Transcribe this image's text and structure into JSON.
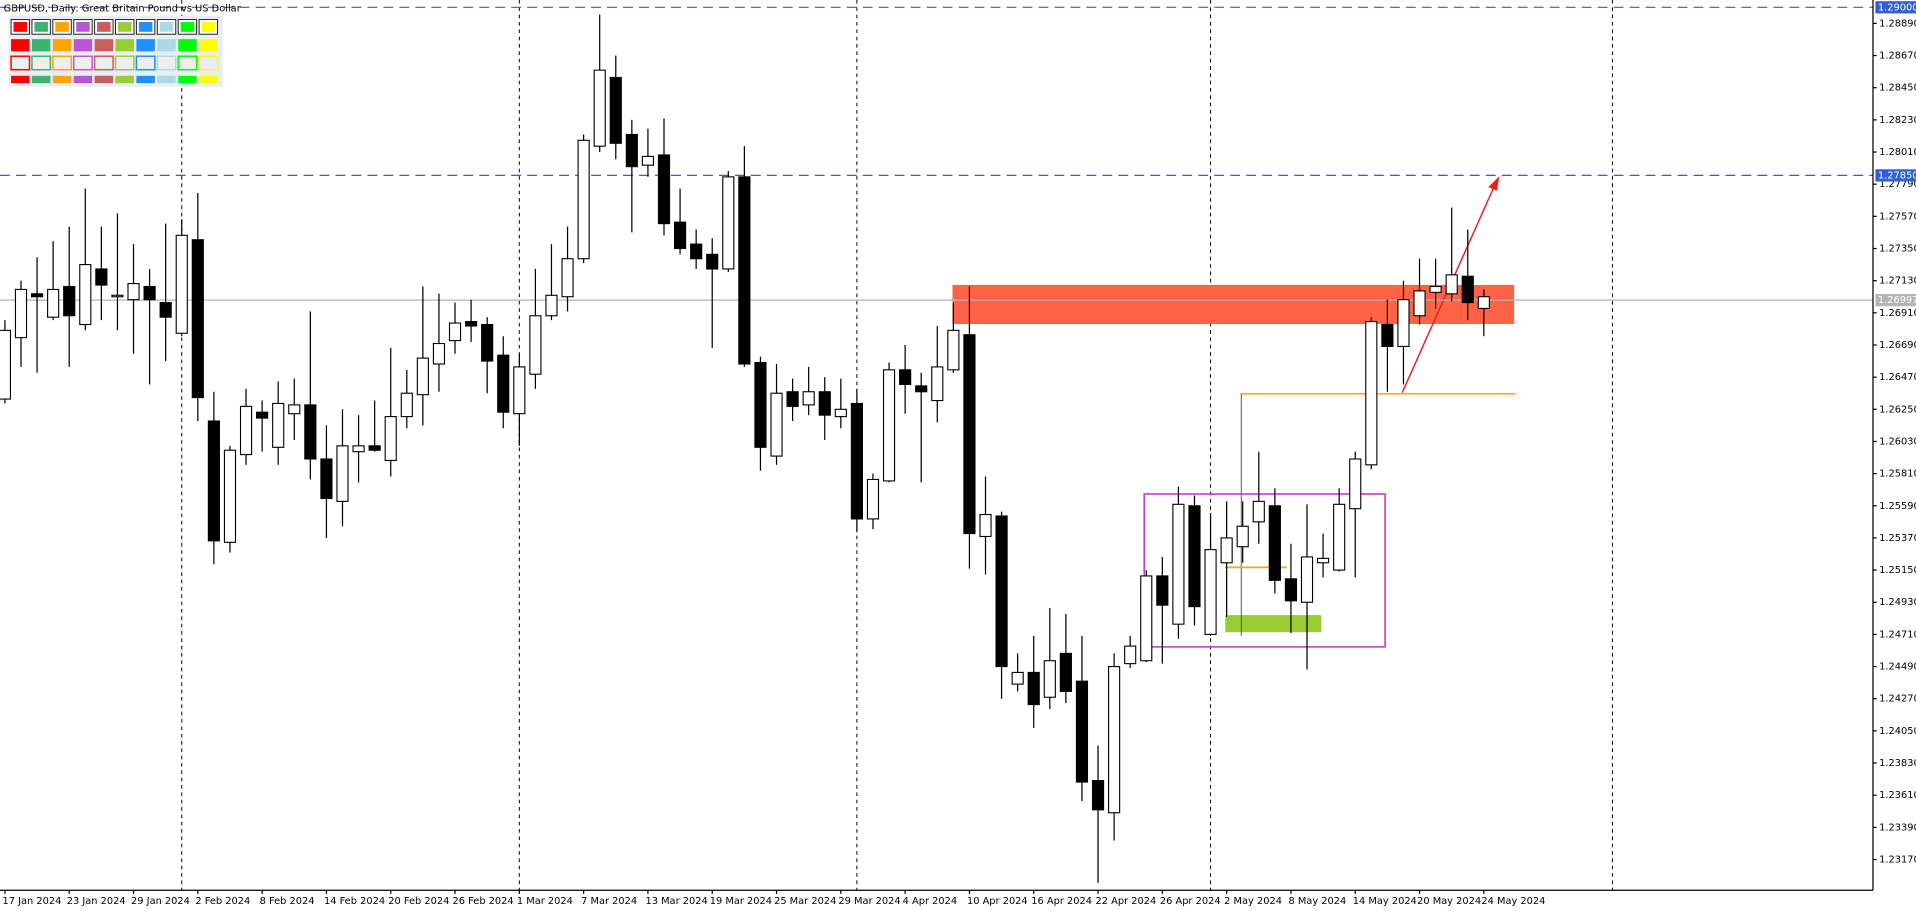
{
  "chart_data": {
    "type": "candlestick",
    "title": "GBPUSD, Daily:  Great Britain Pound vs US Dollar",
    "categories": [
      "17 Jan 2024",
      null,
      null,
      null,
      "23 Jan 2024",
      null,
      null,
      null,
      "29 Jan 2024",
      null,
      null,
      null,
      "2 Feb 2024",
      null,
      null,
      null,
      "8 Feb 2024",
      null,
      null,
      null,
      "14 Feb 2024",
      null,
      null,
      null,
      "20 Feb 2024",
      null,
      null,
      null,
      "26 Feb 2024",
      null,
      null,
      null,
      "1 Mar 2024",
      null,
      null,
      null,
      "7 Mar 2024",
      null,
      null,
      null,
      "13 Mar 2024",
      null,
      null,
      null,
      "19 Mar 2024",
      null,
      null,
      null,
      "25 Mar 2024",
      null,
      null,
      null,
      "29 Mar 2024",
      null,
      null,
      null,
      "4 Apr 2024",
      null,
      null,
      null,
      "10 Apr 2024",
      null,
      null,
      null,
      "16 Apr 2024",
      null,
      null,
      null,
      "22 Apr 2024",
      null,
      null,
      null,
      "26 Apr 2024",
      null,
      null,
      null,
      "2 May 2024",
      null,
      null,
      null,
      "8 May 2024",
      null,
      null,
      null,
      "14 May 2024",
      null,
      null,
      null,
      "20 May 2024",
      null,
      null,
      null,
      "24 May 2024"
    ],
    "open": [
      1.2632,
      1.2674,
      1.2704,
      1.2688,
      1.2709,
      1.2683,
      1.2721,
      1.2702,
      1.27,
      1.2709,
      1.2698,
      1.2677,
      1.2741,
      1.2617,
      1.2534,
      1.2594,
      1.2623,
      1.2599,
      1.2622,
      1.2628,
      1.2591,
      1.2562,
      1.2596,
      1.26,
      1.259,
      1.262,
      1.2635,
      1.2656,
      1.2672,
      1.2685,
      1.2683,
      1.2662,
      1.2622,
      1.2649,
      1.2689,
      1.2702,
      1.2728,
      1.2805,
      1.2852,
      1.2813,
      1.2792,
      1.2799,
      1.2753,
      1.2738,
      1.2731,
      1.2721,
      1.2784,
      1.2657,
      1.2593,
      1.2637,
      1.2628,
      1.2637,
      1.262,
      1.2629,
      1.255,
      1.2576,
      1.2652,
      1.2641,
      1.2631,
      1.2652,
      1.2676,
      1.2538,
      1.2552,
      1.2437,
      1.2445,
      1.2428,
      1.2458,
      1.2439,
      1.2371,
      1.2349,
      1.2451,
      1.2453,
      1.2511,
      1.2478,
      1.2559,
      1.2471,
      1.252,
      1.2531,
      1.2548,
      1.2559,
      1.2509,
      1.2493,
      1.252,
      1.2515,
      1.2557,
      1.2587,
      1.2683,
      1.2668,
      1.2689,
      1.2705,
      1.2704,
      1.2716,
      1.2694
    ],
    "high": [
      1.2686,
      1.2713,
      1.2729,
      1.274,
      1.275,
      1.2776,
      1.275,
      1.2759,
      1.2738,
      1.2721,
      1.2752,
      1.2755,
      1.2773,
      1.2637,
      1.26,
      1.2639,
      1.2631,
      1.2644,
      1.2646,
      1.2692,
      1.2614,
      1.2625,
      1.2621,
      1.2631,
      1.2667,
      1.2652,
      1.2709,
      1.2704,
      1.2698,
      1.27,
      1.2688,
      1.2675,
      1.2663,
      1.2721,
      1.2738,
      1.275,
      1.2813,
      1.2895,
      1.2867,
      1.2823,
      1.2817,
      1.2824,
      1.2776,
      1.2748,
      1.2742,
      1.2788,
      1.2805,
      1.2661,
      1.2656,
      1.2646,
      1.2654,
      1.2647,
      1.2646,
      1.2639,
      1.2581,
      1.2657,
      1.2669,
      1.265,
      1.2682,
      1.2698,
      1.2709,
      1.2579,
      1.2555,
      1.2458,
      1.247,
      1.2489,
      1.2485,
      1.247,
      1.2395,
      1.2458,
      1.247,
      1.2515,
      1.2524,
      1.2572,
      1.2566,
      1.2554,
      1.2562,
      1.2562,
      1.2596,
      1.2571,
      1.2533,
      1.256,
      1.254,
      1.2571,
      1.2596,
      1.2688,
      1.27,
      1.2713,
      1.2728,
      1.2728,
      1.2763,
      1.2748,
      1.2707
    ],
    "low": [
      1.2629,
      1.2654,
      1.265,
      1.2686,
      1.2654,
      1.2679,
      1.2686,
      1.2679,
      1.2663,
      1.2642,
      1.2658,
      1.2675,
      1.2617,
      1.2519,
      1.2527,
      1.2587,
      1.2596,
      1.2587,
      1.2604,
      1.2577,
      1.2537,
      1.2545,
      1.2575,
      1.2596,
      1.2579,
      1.2612,
      1.2614,
      1.2637,
      1.2663,
      1.2671,
      1.2636,
      1.2612,
      1.26,
      1.2639,
      1.2686,
      1.2692,
      1.2725,
      1.2801,
      1.2796,
      1.2746,
      1.2784,
      1.2744,
      1.2731,
      1.2721,
      1.2667,
      1.2719,
      1.2654,
      1.2583,
      1.2587,
      1.2617,
      1.2621,
      1.2604,
      1.2612,
      1.2541,
      1.2543,
      1.2575,
      1.2622,
      1.2575,
      1.2616,
      1.265,
      1.2516,
      1.2512,
      1.2427,
      1.2432,
      1.2407,
      1.242,
      1.2424,
      1.2357,
      1.2301,
      1.233,
      1.2448,
      1.2452,
      1.2451,
      1.2468,
      1.2477,
      1.247,
      1.2483,
      1.252,
      1.2533,
      1.2499,
      1.2472,
      1.2447,
      1.251,
      1.2514,
      1.251,
      1.2584,
      1.2637,
      1.2642,
      1.2683,
      1.2694,
      1.2699,
      1.2686,
      1.2675
    ],
    "close": [
      1.2679,
      1.2707,
      1.2702,
      1.2707,
      1.2689,
      1.2724,
      1.271,
      1.2703,
      1.2711,
      1.27,
      1.2688,
      1.2744,
      1.2633,
      1.2535,
      1.2597,
      1.2627,
      1.2619,
      1.2629,
      1.2628,
      1.2591,
      1.2564,
      1.26,
      1.26,
      1.2597,
      1.262,
      1.2636,
      1.266,
      1.267,
      1.2684,
      1.2682,
      1.2658,
      1.2623,
      1.2654,
      1.2689,
      1.2703,
      1.2728,
      1.2809,
      1.2857,
      1.2807,
      1.2791,
      1.2798,
      1.2752,
      1.2735,
      1.2728,
      1.2721,
      1.2784,
      1.2656,
      1.2599,
      1.2636,
      1.2627,
      1.2637,
      1.2621,
      1.2625,
      1.255,
      1.2577,
      1.2652,
      1.2642,
      1.2637,
      1.2654,
      1.2679,
      1.254,
      1.2553,
      1.2449,
      1.2445,
      1.2423,
      1.2453,
      1.2432,
      1.237,
      1.2351,
      1.2449,
      1.2463,
      1.2511,
      1.2491,
      1.256,
      1.249,
      1.2529,
      1.2537,
      1.2545,
      1.2562,
      1.2508,
      1.2494,
      1.2524,
      1.2523,
      1.256,
      1.2591,
      1.2685,
      1.2668,
      1.27,
      1.2706,
      1.2709,
      1.2717,
      1.2698,
      1.2702
    ],
    "up_color": "#ffffff",
    "down_color": "#000000",
    "ylim": [
      1.2296,
      1.2905
    ],
    "yticks": [
      {
        "value": 1.2317,
        "label": "1.23170"
      },
      {
        "value": 1.2339,
        "label": "1.23390"
      },
      {
        "value": 1.2361,
        "label": "1.23610"
      },
      {
        "value": 1.2383,
        "label": "1.23830"
      },
      {
        "value": 1.2405,
        "label": "1.24050"
      },
      {
        "value": 1.2427,
        "label": "1.24270"
      },
      {
        "value": 1.2449,
        "label": "1.24490"
      },
      {
        "value": 1.2471,
        "label": "1.24710"
      },
      {
        "value": 1.2493,
        "label": "1.24930"
      },
      {
        "value": 1.2515,
        "label": "1.25150"
      },
      {
        "value": 1.2537,
        "label": "1.25370"
      },
      {
        "value": 1.2559,
        "label": "1.25590"
      },
      {
        "value": 1.2581,
        "label": "1.25810"
      },
      {
        "value": 1.2603,
        "label": "1.26030"
      },
      {
        "value": 1.2625,
        "label": "1.26250"
      },
      {
        "value": 1.2647,
        "label": "1.26470"
      },
      {
        "value": 1.2669,
        "label": "1.26690"
      },
      {
        "value": 1.2691,
        "label": "1.26910"
      },
      {
        "value": 1.2713,
        "label": "1.27130"
      },
      {
        "value": 1.2735,
        "label": "1.27350"
      },
      {
        "value": 1.2757,
        "label": "1.27570"
      },
      {
        "value": 1.2779,
        "label": "1.27790"
      },
      {
        "value": 1.2801,
        "label": "1.28010"
      },
      {
        "value": 1.2823,
        "label": "1.28230"
      },
      {
        "value": 1.2845,
        "label": "1.28450"
      },
      {
        "value": 1.2867,
        "label": "1.28670"
      },
      {
        "value": 1.2889,
        "label": "1.28890"
      }
    ],
    "price_lines": [
      {
        "value": 1.29,
        "label": "1.29000",
        "color": "#2f5fd0",
        "style": "dashed"
      },
      {
        "value": 1.2785,
        "label": "1.27850",
        "color": "#2f5fd0",
        "style": "dashed"
      },
      {
        "value": 1.26997,
        "label": "1.26997",
        "color": "#b4b4b4",
        "style": "solid"
      }
    ]
  }
}
